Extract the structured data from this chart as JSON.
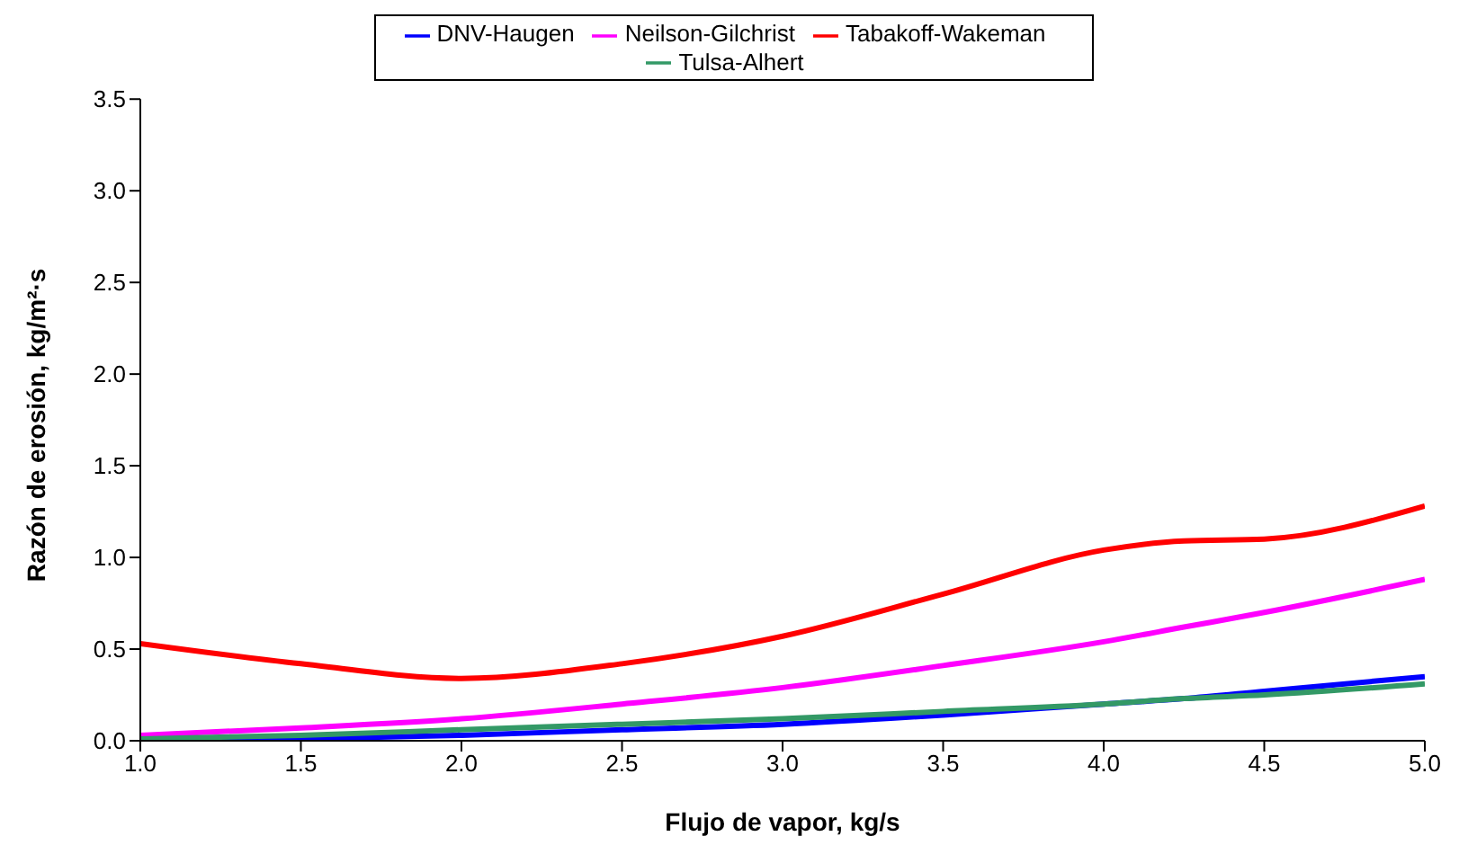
{
  "chart_data": {
    "type": "line",
    "xlabel": "Flujo de vapor, kg/s",
    "ylabel": "Razón de erosión, kg/m²·s",
    "x": [
      1.0,
      1.5,
      2.0,
      2.5,
      3.0,
      3.5,
      4.0,
      4.25,
      4.5,
      5.0
    ],
    "series": [
      {
        "name": "DNV-Haugen",
        "color": "#0000ff",
        "values": [
          0.0,
          0.01,
          0.03,
          0.06,
          0.09,
          0.14,
          0.2,
          0.23,
          0.27,
          0.35
        ]
      },
      {
        "name": "Neilson-Gilchrist",
        "color": "#ff00ff",
        "values": [
          0.03,
          0.07,
          0.12,
          0.2,
          0.29,
          0.41,
          0.54,
          0.62,
          0.7,
          0.88
        ]
      },
      {
        "name": "Tulsa-Alhert",
        "color": "#339966",
        "values": [
          0.01,
          0.03,
          0.06,
          0.09,
          0.12,
          0.16,
          0.2,
          0.23,
          0.25,
          0.31
        ]
      },
      {
        "name": "Tabakoff-Wakeman",
        "color": "#ff0000",
        "values": [
          0.53,
          0.42,
          0.34,
          0.42,
          0.57,
          0.8,
          1.04,
          1.09,
          1.1,
          1.28
        ]
      }
    ],
    "xlim": [
      1,
      5
    ],
    "xticks": [
      {
        "value": 1,
        "label": "1.0"
      },
      {
        "value": 1.5,
        "label": "1.5"
      },
      {
        "value": 2,
        "label": "2.0"
      },
      {
        "value": 2.5,
        "label": "2.5"
      },
      {
        "value": 3,
        "label": "3.0"
      },
      {
        "value": 3.5,
        "label": "3.5"
      },
      {
        "value": 4,
        "label": "4.0"
      },
      {
        "value": 4.5,
        "label": "4.5"
      },
      {
        "value": 5,
        "label": "5.0"
      }
    ],
    "ylim": [
      0,
      3.5
    ],
    "yticks": [
      {
        "value": 0,
        "label": "0.0"
      },
      {
        "value": 0.5,
        "label": "0.5"
      },
      {
        "value": 1,
        "label": "1.0"
      },
      {
        "value": 1.5,
        "label": "1.5"
      },
      {
        "value": 2,
        "label": "2.0"
      },
      {
        "value": 2.5,
        "label": "2.5"
      },
      {
        "value": 3,
        "label": "3.0"
      },
      {
        "value": 3.5,
        "label": "3.5"
      }
    ],
    "grid": false,
    "legend": "top",
    "marker": "none",
    "line_style": "solid"
  }
}
